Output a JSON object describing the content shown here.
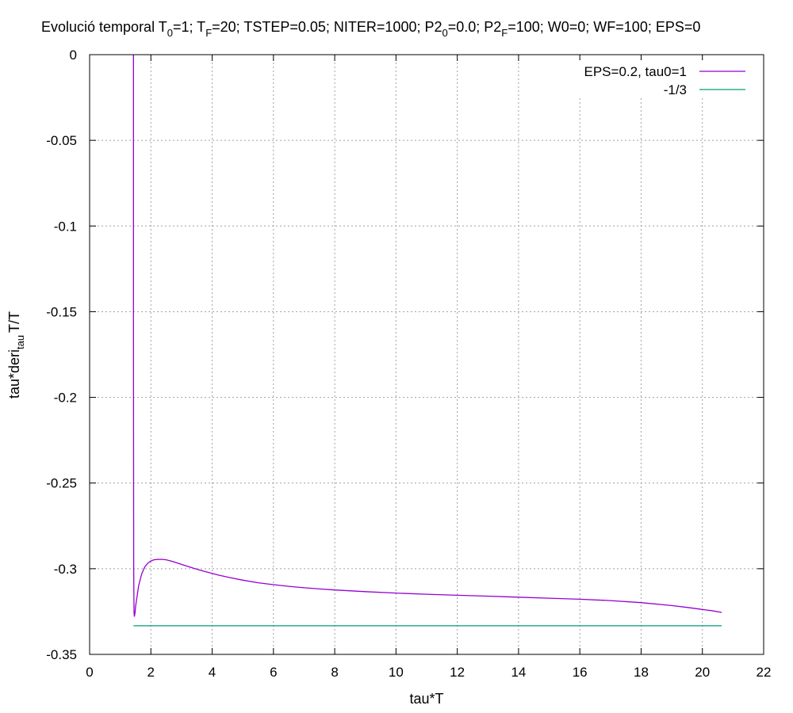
{
  "chart_data": {
    "type": "line",
    "title": {
      "parts": [
        {
          "t": "Evolució temporal T",
          "s": false
        },
        {
          "t": "0",
          "s": true
        },
        {
          "t": "=1; T",
          "s": false
        },
        {
          "t": "F",
          "s": true
        },
        {
          "t": "=20; TSTEP=0.05; NITER=1000; P2",
          "s": false
        },
        {
          "t": "0",
          "s": true
        },
        {
          "t": "=0.0; P2",
          "s": false
        },
        {
          "t": "F",
          "s": true
        },
        {
          "t": "=100; W0=0; WF=100; EPS=0",
          "s": false
        }
      ]
    },
    "xlabel": "tau*T",
    "ylabel": {
      "main": "tau*deri",
      "sub": "tau",
      "tail": "T/T"
    },
    "xlim": [
      0,
      22
    ],
    "ylim": [
      -0.35,
      0
    ],
    "xticks": [
      0,
      2,
      4,
      6,
      8,
      10,
      12,
      14,
      16,
      18,
      20,
      22
    ],
    "yticks": [
      0,
      -0.05,
      -0.1,
      -0.15,
      -0.2,
      -0.25,
      -0.3,
      -0.35
    ],
    "xtick_labels": [
      "0",
      "2",
      "4",
      "6",
      "8",
      "10",
      "12",
      "14",
      "16",
      "18",
      "20",
      "22"
    ],
    "ytick_labels": [
      "0",
      "-0.05",
      "-0.1",
      "-0.15",
      "-0.2",
      "-0.25",
      "-0.3",
      "-0.35"
    ],
    "grid": true,
    "legend_position": "top-right",
    "series": [
      {
        "name": "EPS=0.2, tau0=1",
        "color": "#9400d3",
        "x": [
          1.43,
          1.43,
          1.44,
          1.45,
          1.46,
          1.48,
          1.5,
          1.55,
          1.6,
          1.7,
          1.8,
          1.9,
          2.0,
          2.1,
          2.2,
          2.35,
          2.5,
          2.7,
          3.0,
          3.4,
          3.8,
          4.2,
          4.6,
          5.0,
          5.5,
          6.0,
          6.5,
          7.0,
          7.5,
          8.0,
          9.0,
          10.0,
          11.0,
          12.0,
          13.0,
          14.0,
          15.0,
          16.0,
          17.0,
          18.0,
          19.0,
          19.5,
          20.0,
          20.3,
          20.63
        ],
        "y": [
          0.0,
          -0.165,
          -0.3,
          -0.325,
          -0.328,
          -0.326,
          -0.322,
          -0.316,
          -0.31,
          -0.303,
          -0.299,
          -0.2968,
          -0.2955,
          -0.2948,
          -0.2946,
          -0.2945,
          -0.2948,
          -0.2957,
          -0.2975,
          -0.2998,
          -0.3018,
          -0.3037,
          -0.3053,
          -0.3067,
          -0.3082,
          -0.3093,
          -0.3103,
          -0.3111,
          -0.3118,
          -0.3124,
          -0.3134,
          -0.3142,
          -0.3149,
          -0.3155,
          -0.316,
          -0.3166,
          -0.3172,
          -0.3178,
          -0.3186,
          -0.3198,
          -0.3215,
          -0.3226,
          -0.3238,
          -0.3245,
          -0.3255
        ]
      },
      {
        "name": "-1/3",
        "color": "#009e73",
        "x": [
          1.43,
          20.63
        ],
        "y": [
          -0.3333,
          -0.3333
        ]
      }
    ]
  }
}
